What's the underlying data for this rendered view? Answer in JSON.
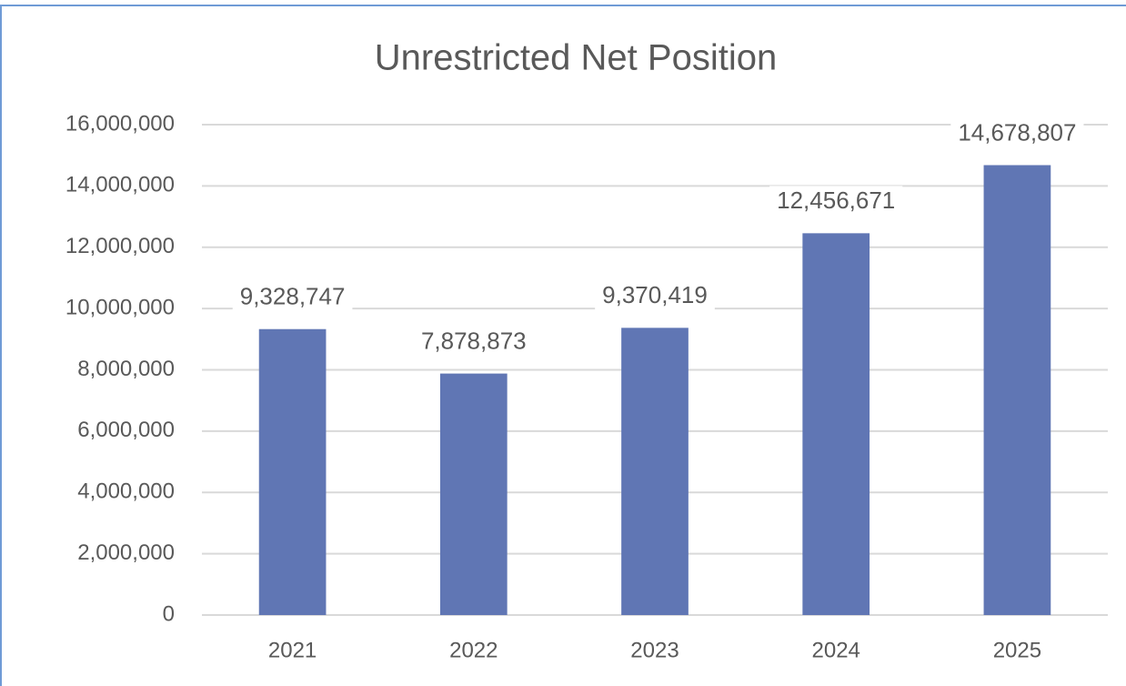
{
  "chart_data": {
    "type": "bar",
    "title": "Unrestricted Net Position",
    "categories": [
      "2021",
      "2022",
      "2023",
      "2024",
      "2025"
    ],
    "values": [
      9328747,
      7878873,
      9370419,
      12456671,
      14678807
    ],
    "value_labels": [
      "9,328,747",
      "7,878,873",
      "9,370,419",
      "12,456,671",
      "14,678,807"
    ],
    "color": "#6076b4",
    "ylim": [
      0,
      16000000
    ],
    "yticks": [
      0,
      {
        "value": 2000000,
        "label": "2,000,000"
      },
      {
        "value": 4000000,
        "label": "4,000,000"
      },
      {
        "value": 6000000,
        "label": "6,000,000"
      },
      {
        "value": 8000000,
        "label": "8,000,000"
      },
      {
        "value": 10000000,
        "label": "10,000,000"
      },
      {
        "value": 12000000,
        "label": "12,000,000"
      },
      {
        "value": 14000000,
        "label": "14,000,000"
      },
      {
        "value": 16000000,
        "label": "16,000,000"
      }
    ],
    "grid": true
  }
}
